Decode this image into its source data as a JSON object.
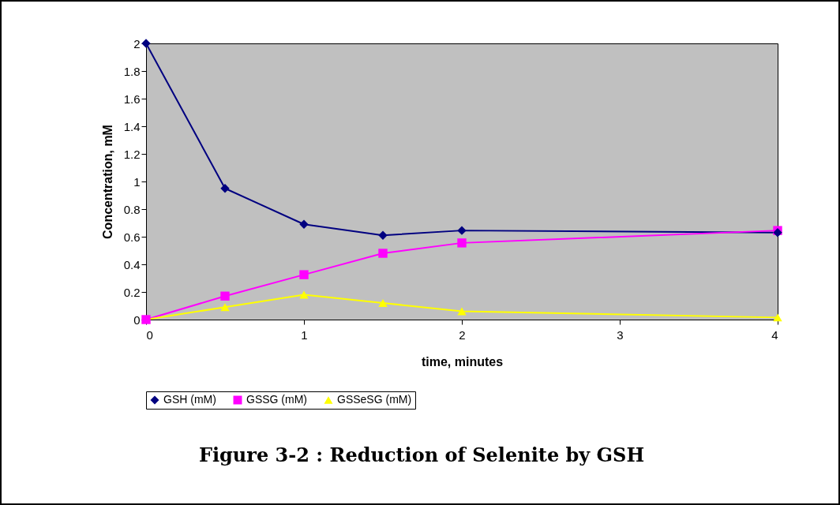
{
  "chart_data": {
    "type": "line",
    "title": "Figure 3-2 : Reduction of Selenite by GSH",
    "xlabel": "time,   minutes",
    "ylabel": "Concentration,   mM",
    "x": [
      0,
      0.5,
      1,
      1.5,
      2,
      4
    ],
    "series": [
      {
        "name": "GSH (mM)",
        "color": "#000080",
        "marker": "diamond",
        "values": [
          2,
          0.95,
          0.69,
          0.61,
          0.645,
          0.63
        ]
      },
      {
        "name": "GSSG (mM)",
        "color": "#ff00ff",
        "marker": "square",
        "values": [
          0,
          0.17,
          0.325,
          0.48,
          0.555,
          0.645
        ]
      },
      {
        "name": "GSSeSG (mM)",
        "color": "#ffff00",
        "marker": "triangle",
        "values": [
          0,
          0.09,
          0.18,
          0.12,
          0.06,
          0.015
        ]
      }
    ],
    "xlim": [
      0,
      4
    ],
    "xticks": [
      0,
      1,
      2,
      3,
      4
    ],
    "ylim": [
      0,
      2
    ],
    "yticks": [
      0,
      0.2,
      0.4,
      0.6,
      0.8,
      1,
      1.2,
      1.4,
      1.6,
      1.8,
      2
    ],
    "grid": false,
    "legend": "bottom",
    "line_style": "solid"
  }
}
